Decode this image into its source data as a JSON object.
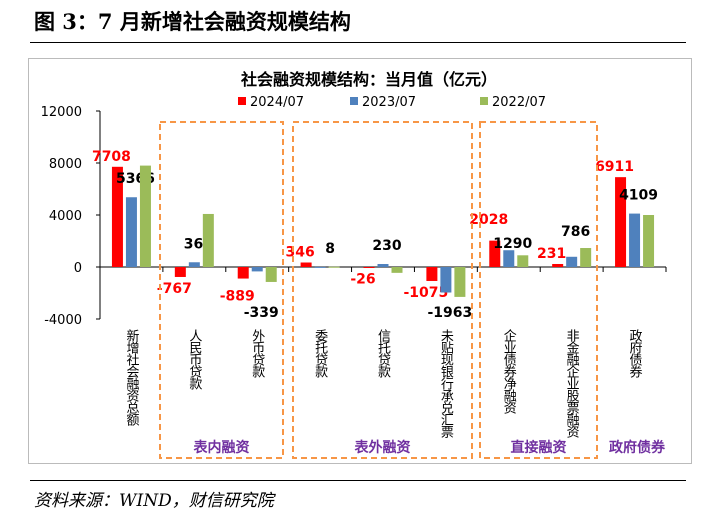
{
  "figure_title": "图 3：7 月新增社会融资规模结构",
  "source": "资料来源：WIND，财信研究院",
  "chart_data": {
    "type": "bar",
    "title": "社会融资规模结构：当月值（亿元）",
    "categories": [
      "新增社会融资总额",
      "人民币贷款",
      "外币贷款",
      "委托贷款",
      "信托贷款",
      "未贴现银行承兑汇票",
      "企业债券净融资",
      "非金融企业股票融资",
      "政府债券"
    ],
    "series": [
      {
        "name": "2024/07",
        "color": "#FF0000",
        "values": [
          7708,
          -767,
          -889,
          346,
          -26,
          -1075,
          2028,
          231,
          6911
        ],
        "labels": [
          "7708",
          "-767",
          "-889",
          "346",
          "-26",
          "-1075",
          "2028",
          "231",
          "6911"
        ]
      },
      {
        "name": "2023/07",
        "color": "#4F81BD",
        "values": [
          5366,
          364,
          -339,
          8,
          230,
          -1963,
          1290,
          786,
          4109
        ],
        "labels": [
          "5366",
          "364",
          "-339",
          "8",
          "230",
          "-1963",
          "1290",
          "786",
          "4109"
        ]
      },
      {
        "name": "2022/07",
        "color": "#9BBB59",
        "values": [
          7800,
          4080,
          -1150,
          20,
          -450,
          -2300,
          900,
          1460,
          4000
        ]
      }
    ],
    "ylim": [
      -4000,
      12000
    ],
    "yticks": [
      "-4000",
      "0",
      "4000",
      "8000",
      "12000"
    ],
    "legend_position": "top",
    "groups": [
      {
        "label": "表内融资",
        "boxed": true
      },
      {
        "label": "表外融资",
        "boxed": true
      },
      {
        "label": "直接融资",
        "boxed": true
      },
      {
        "label": "政府债券",
        "boxed": false
      }
    ],
    "group_color": "#7030A0",
    "box_color": "#F79646"
  }
}
